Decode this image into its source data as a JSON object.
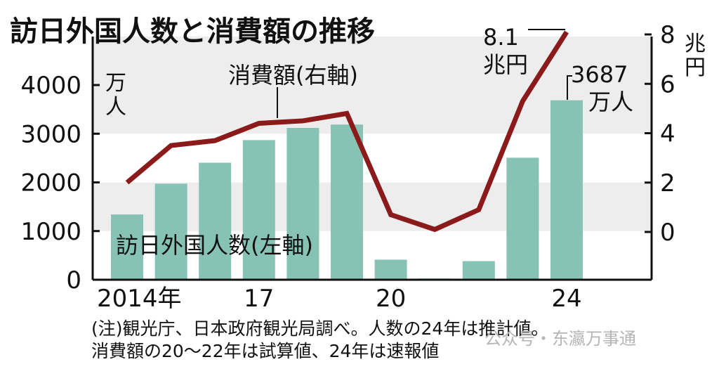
{
  "title": "訪日外国人数と消費額の推移",
  "chart_data": {
    "type": "bar",
    "years": [
      2014,
      2015,
      2016,
      2017,
      2018,
      2019,
      2020,
      2021,
      2022,
      2023,
      2024
    ],
    "x_tick_labels": [
      "2014年",
      "17",
      "20",
      "24"
    ],
    "series": [
      {
        "name": "訪日外国人数(左軸)",
        "type": "bar",
        "axis": "left",
        "values": [
          1341,
          1974,
          2404,
          2869,
          3119,
          3188,
          412,
          25,
          383,
          2507,
          3687
        ]
      },
      {
        "name": "消費額(右軸)",
        "type": "line",
        "axis": "right",
        "values": [
          2.0,
          3.5,
          3.7,
          4.4,
          4.5,
          4.8,
          0.7,
          0.1,
          0.9,
          5.3,
          8.1
        ]
      }
    ],
    "left_axis": {
      "unit": "万人",
      "ylim": [
        0,
        4000
      ],
      "ticks": [
        "0",
        "1000",
        "2000",
        "3000",
        "4000"
      ]
    },
    "right_axis": {
      "unit": "兆円",
      "ylim": [
        0,
        8
      ],
      "ticks": [
        "0",
        "2",
        "4",
        "6",
        "8"
      ]
    },
    "annotations": {
      "line_end_value": "8.1",
      "line_end_unit": "兆円",
      "bar_end_value": "3687",
      "bar_end_unit": "万人"
    },
    "colors": {
      "bar": "#86c3b4",
      "line": "#8b1a1a",
      "band": "#ededed"
    }
  },
  "notes": [
    "(注)観光庁、日本政府観光局調べ。人数の24年は推計値。",
    "消費額の20〜22年は試算値、24年は速報値"
  ],
  "watermark": "公众号・东瀛万事通"
}
